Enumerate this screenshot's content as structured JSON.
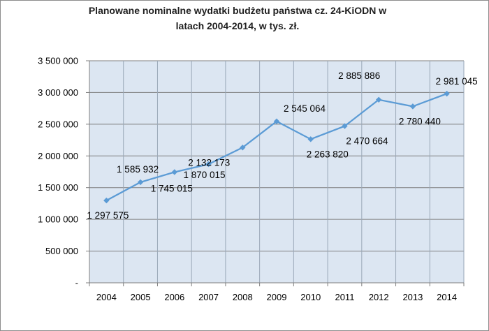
{
  "chart_data": {
    "type": "line",
    "title_line1": "Planowane nominalne wydatki budżetu państwa cz. 24-KiODN w",
    "title_line2": "latach 2004-2014, w tys. zł.",
    "xlabel": "",
    "ylabel": "",
    "categories": [
      "2004",
      "2005",
      "2006",
      "2007",
      "2008",
      "2009",
      "2010",
      "2011",
      "2012",
      "2013",
      "2014"
    ],
    "series": [
      {
        "values": [
          1297575,
          1585932,
          1745015,
          1870015,
          2132173,
          2545064,
          2263820,
          2470664,
          2885886,
          2780440,
          2981045
        ],
        "data_labels": [
          "1 297 575",
          "1 585 932",
          "1 745 015",
          "1 870 015",
          "2 132 173",
          "2 545 064",
          "2 263 820",
          "2 470 664",
          "2 885 886",
          "2 780 440",
          "2 981 045"
        ],
        "color": "#5b9bd5"
      }
    ],
    "ylim": [
      0,
      3500000
    ],
    "yticks": [
      0,
      500000,
      1000000,
      1500000,
      2000000,
      2500000,
      3000000,
      3500000
    ],
    "ytick_labels": [
      "-",
      "500 000",
      "1 000 000",
      "1 500 000",
      "2 000 000",
      "2 500 000",
      "3 000 000",
      "3 500 000"
    ],
    "grid": true,
    "legend": "none",
    "plot_background": "#dce6f2",
    "gridline_color": "#7f7f7f"
  }
}
